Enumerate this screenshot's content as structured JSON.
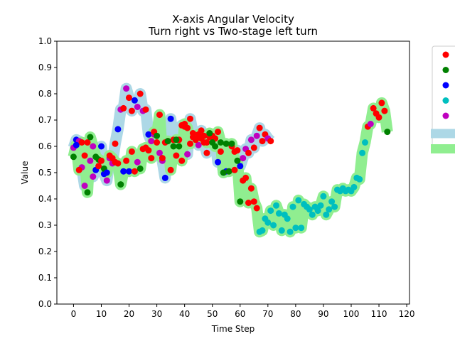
{
  "chart_data": {
    "type": "scatter",
    "title": "X-axis Angular Velocity",
    "subtitle": "Turn right vs Two-stage left turn",
    "xlabel": "Time Step",
    "ylabel": "Value",
    "xlim": [
      -6,
      121
    ],
    "ylim": [
      0.0,
      1.0
    ],
    "x_ticks": [
      0,
      10,
      20,
      30,
      40,
      50,
      60,
      70,
      80,
      90,
      100,
      110,
      120
    ],
    "y_ticks": [
      0.0,
      0.1,
      0.2,
      0.3,
      0.4,
      0.5,
      0.6,
      0.7,
      0.8,
      0.9,
      1.0
    ],
    "x_tick_labels": [
      "0",
      "10",
      "20",
      "30",
      "40",
      "50",
      "60",
      "70",
      "80",
      "90",
      "100",
      "110",
      "120"
    ],
    "y_tick_labels": [
      "0.0",
      "0.1",
      "0.2",
      "0.3",
      "0.4",
      "0.5",
      "0.6",
      "0.7",
      "0.8",
      "0.9",
      "1.0"
    ],
    "grid": false,
    "legend_position": "top-right (clipped at the right edge)",
    "point_colors": {
      "red": "#ff0000",
      "green": "#008000",
      "blue": "#0000ff",
      "cyan": "#00bfbf",
      "magenta": "#bf00bf"
    },
    "band_colors": {
      "turn_right": "#add8e6",
      "two_stage_left": "#90ee90"
    },
    "legend_entries": [
      {
        "kind": "point",
        "color": "#ff0000"
      },
      {
        "kind": "point",
        "color": "#008000"
      },
      {
        "kind": "point",
        "color": "#0000ff"
      },
      {
        "kind": "point",
        "color": "#00bfbf"
      },
      {
        "kind": "point",
        "color": "#bf00bf"
      },
      {
        "kind": "band",
        "color": "#add8e6"
      },
      {
        "kind": "band",
        "color": "#90ee90"
      }
    ],
    "series": [
      {
        "band_color": "#add8e6",
        "points": [
          {
            "x": 0,
            "y": 0.595,
            "c": "magenta"
          },
          {
            "x": 1,
            "y": 0.625,
            "c": "blue"
          },
          {
            "x": 2,
            "y": 0.62,
            "c": "magenta"
          },
          {
            "x": 3,
            "y": 0.52,
            "c": "magenta"
          },
          {
            "x": 4,
            "y": 0.45,
            "c": "magenta"
          },
          {
            "x": 5,
            "y": 0.615,
            "c": "red"
          },
          {
            "x": 6,
            "y": 0.545,
            "c": "magenta"
          },
          {
            "x": 7,
            "y": 0.485,
            "c": "magenta"
          },
          {
            "x": 8,
            "y": 0.51,
            "c": "blue"
          },
          {
            "x": 9,
            "y": 0.525,
            "c": "red"
          },
          {
            "x": 10,
            "y": 0.6,
            "c": "blue"
          },
          {
            "x": 11,
            "y": 0.495,
            "c": "blue"
          },
          {
            "x": 12,
            "y": 0.47,
            "c": "magenta"
          },
          {
            "x": 13,
            "y": 0.555,
            "c": "magenta"
          },
          {
            "x": 14,
            "y": 0.535,
            "c": "magenta"
          },
          {
            "x": 15,
            "y": 0.61,
            "c": "red"
          },
          {
            "x": 16,
            "y": 0.665,
            "c": "blue"
          },
          {
            "x": 17,
            "y": 0.74,
            "c": "magenta"
          },
          {
            "x": 18,
            "y": 0.745,
            "c": "red"
          },
          {
            "x": 19,
            "y": 0.82,
            "c": "magenta"
          },
          {
            "x": 20,
            "y": 0.785,
            "c": "red"
          },
          {
            "x": 21,
            "y": 0.735,
            "c": "red"
          },
          {
            "x": 22,
            "y": 0.775,
            "c": "blue"
          },
          {
            "x": 23,
            "y": 0.75,
            "c": "magenta"
          },
          {
            "x": 24,
            "y": 0.8,
            "c": "red"
          },
          {
            "x": 25,
            "y": 0.735,
            "c": "magenta"
          },
          {
            "x": 26,
            "y": 0.74,
            "c": "red"
          },
          {
            "x": 27,
            "y": 0.645,
            "c": "blue"
          },
          {
            "x": 28,
            "y": 0.62,
            "c": "magenta"
          },
          {
            "x": 29,
            "y": 0.645,
            "c": "magenta"
          },
          {
            "x": 30,
            "y": 0.615,
            "c": "red"
          },
          {
            "x": 31,
            "y": 0.575,
            "c": "magenta"
          },
          {
            "x": 32,
            "y": 0.545,
            "c": "magenta"
          },
          {
            "x": 33,
            "y": 0.48,
            "c": "blue"
          },
          {
            "x": 34,
            "y": 0.62,
            "c": "red"
          },
          {
            "x": 35,
            "y": 0.705,
            "c": "blue"
          },
          {
            "x": 36,
            "y": 0.625,
            "c": "red"
          },
          {
            "x": 37,
            "y": 0.565,
            "c": "red"
          },
          {
            "x": 38,
            "y": 0.625,
            "c": "red"
          },
          {
            "x": 39,
            "y": 0.68,
            "c": "red"
          },
          {
            "x": 40,
            "y": 0.675,
            "c": "red"
          },
          {
            "x": 41,
            "y": 0.57,
            "c": "magenta"
          },
          {
            "x": 42,
            "y": 0.705,
            "c": "red"
          },
          {
            "x": 43,
            "y": 0.65,
            "c": "red"
          },
          {
            "x": 44,
            "y": 0.63,
            "c": "red"
          },
          {
            "x": 45,
            "y": 0.605,
            "c": "magenta"
          },
          {
            "x": 46,
            "y": 0.66,
            "c": "red"
          },
          {
            "x": 47,
            "y": 0.615,
            "c": "red"
          },
          {
            "x": 48,
            "y": 0.575,
            "c": "red"
          },
          {
            "x": 49,
            "y": 0.635,
            "c": "red"
          },
          {
            "x": 50,
            "y": 0.64,
            "c": "red"
          },
          {
            "x": 51,
            "y": 0.63,
            "c": "red"
          },
          {
            "x": 52,
            "y": 0.54,
            "c": "blue"
          },
          {
            "x": 53,
            "y": 0.58,
            "c": "red"
          },
          {
            "x": 54,
            "y": 0.5,
            "c": "blue"
          },
          {
            "x": 55,
            "y": 0.505,
            "c": "blue"
          },
          {
            "x": 56,
            "y": 0.505,
            "c": "red"
          },
          {
            "x": 57,
            "y": 0.6,
            "c": "red"
          },
          {
            "x": 58,
            "y": 0.58,
            "c": "red"
          },
          {
            "x": 59,
            "y": 0.585,
            "c": "red"
          },
          {
            "x": 60,
            "y": 0.525,
            "c": "blue"
          },
          {
            "x": 61,
            "y": 0.555,
            "c": "magenta"
          },
          {
            "x": 62,
            "y": 0.59,
            "c": "magenta"
          },
          {
            "x": 63,
            "y": 0.575,
            "c": "red"
          },
          {
            "x": 64,
            "y": 0.625,
            "c": "magenta"
          },
          {
            "x": 65,
            "y": 0.595,
            "c": "red"
          },
          {
            "x": 66,
            "y": 0.64,
            "c": "magenta"
          },
          {
            "x": 67,
            "y": 0.67,
            "c": "red"
          },
          {
            "x": 68,
            "y": 0.62,
            "c": "red"
          },
          {
            "x": 69,
            "y": 0.645,
            "c": "red"
          },
          {
            "x": 70,
            "y": 0.63,
            "c": "magenta"
          },
          {
            "x": 71,
            "y": 0.62,
            "c": "red"
          }
        ]
      },
      {
        "band_color": "#90ee90",
        "points": [
          {
            "x": 0,
            "y": 0.56,
            "c": "green"
          },
          {
            "x": 1,
            "y": 0.605,
            "c": "blue"
          },
          {
            "x": 2,
            "y": 0.51,
            "c": "red"
          },
          {
            "x": 3,
            "y": 0.615,
            "c": "red"
          },
          {
            "x": 4,
            "y": 0.565,
            "c": "red"
          },
          {
            "x": 5,
            "y": 0.425,
            "c": "green"
          },
          {
            "x": 6,
            "y": 0.635,
            "c": "green"
          },
          {
            "x": 7,
            "y": 0.6,
            "c": "magenta"
          },
          {
            "x": 8,
            "y": 0.56,
            "c": "green"
          },
          {
            "x": 9,
            "y": 0.55,
            "c": "green"
          },
          {
            "x": 10,
            "y": 0.545,
            "c": "red"
          },
          {
            "x": 11,
            "y": 0.515,
            "c": "green"
          },
          {
            "x": 12,
            "y": 0.5,
            "c": "blue"
          },
          {
            "x": 13,
            "y": 0.565,
            "c": "red"
          },
          {
            "x": 14,
            "y": 0.555,
            "c": "red"
          },
          {
            "x": 15,
            "y": 0.54,
            "c": "red"
          },
          {
            "x": 16,
            "y": 0.535,
            "c": "red"
          },
          {
            "x": 17,
            "y": 0.455,
            "c": "green"
          },
          {
            "x": 18,
            "y": 0.505,
            "c": "blue"
          },
          {
            "x": 19,
            "y": 0.545,
            "c": "red"
          },
          {
            "x": 20,
            "y": 0.505,
            "c": "blue"
          },
          {
            "x": 21,
            "y": 0.58,
            "c": "red"
          },
          {
            "x": 22,
            "y": 0.505,
            "c": "red"
          },
          {
            "x": 23,
            "y": 0.54,
            "c": "magenta"
          },
          {
            "x": 24,
            "y": 0.515,
            "c": "green"
          },
          {
            "x": 25,
            "y": 0.59,
            "c": "red"
          },
          {
            "x": 26,
            "y": 0.595,
            "c": "red"
          },
          {
            "x": 27,
            "y": 0.585,
            "c": "red"
          },
          {
            "x": 28,
            "y": 0.555,
            "c": "red"
          },
          {
            "x": 29,
            "y": 0.655,
            "c": "red"
          },
          {
            "x": 30,
            "y": 0.64,
            "c": "green"
          },
          {
            "x": 31,
            "y": 0.72,
            "c": "red"
          },
          {
            "x": 32,
            "y": 0.555,
            "c": "red"
          },
          {
            "x": 33,
            "y": 0.615,
            "c": "red"
          },
          {
            "x": 34,
            "y": 0.62,
            "c": "green"
          },
          {
            "x": 35,
            "y": 0.51,
            "c": "red"
          },
          {
            "x": 36,
            "y": 0.6,
            "c": "green"
          },
          {
            "x": 37,
            "y": 0.625,
            "c": "green"
          },
          {
            "x": 38,
            "y": 0.6,
            "c": "green"
          },
          {
            "x": 39,
            "y": 0.545,
            "c": "red"
          },
          {
            "x": 40,
            "y": 0.685,
            "c": "red"
          },
          {
            "x": 41,
            "y": 0.67,
            "c": "red"
          },
          {
            "x": 42,
            "y": 0.61,
            "c": "red"
          },
          {
            "x": 43,
            "y": 0.635,
            "c": "red"
          },
          {
            "x": 44,
            "y": 0.625,
            "c": "red"
          },
          {
            "x": 45,
            "y": 0.645,
            "c": "red"
          },
          {
            "x": 46,
            "y": 0.63,
            "c": "red"
          },
          {
            "x": 47,
            "y": 0.64,
            "c": "red"
          },
          {
            "x": 48,
            "y": 0.615,
            "c": "red"
          },
          {
            "x": 49,
            "y": 0.65,
            "c": "green"
          },
          {
            "x": 50,
            "y": 0.615,
            "c": "green"
          },
          {
            "x": 51,
            "y": 0.6,
            "c": "green"
          },
          {
            "x": 52,
            "y": 0.655,
            "c": "red"
          },
          {
            "x": 53,
            "y": 0.615,
            "c": "green"
          },
          {
            "x": 54,
            "y": 0.5,
            "c": "green"
          },
          {
            "x": 55,
            "y": 0.61,
            "c": "green"
          },
          {
            "x": 56,
            "y": 0.505,
            "c": "green"
          },
          {
            "x": 57,
            "y": 0.61,
            "c": "green"
          },
          {
            "x": 58,
            "y": 0.51,
            "c": "red"
          },
          {
            "x": 59,
            "y": 0.545,
            "c": "green"
          },
          {
            "x": 60,
            "y": 0.39,
            "c": "green"
          },
          {
            "x": 61,
            "y": 0.47,
            "c": "red"
          },
          {
            "x": 62,
            "y": 0.48,
            "c": "red"
          },
          {
            "x": 63,
            "y": 0.385,
            "c": "red"
          },
          {
            "x": 64,
            "y": 0.44,
            "c": "red"
          },
          {
            "x": 65,
            "y": 0.39,
            "c": "red"
          },
          {
            "x": 66,
            "y": 0.365,
            "c": "red"
          },
          {
            "x": 67,
            "y": 0.275,
            "c": "cyan"
          },
          {
            "x": 68,
            "y": 0.28,
            "c": "cyan"
          },
          {
            "x": 69,
            "y": 0.325,
            "c": "cyan"
          },
          {
            "x": 70,
            "y": 0.31,
            "c": "cyan"
          },
          {
            "x": 71,
            "y": 0.355,
            "c": "cyan"
          },
          {
            "x": 72,
            "y": 0.3,
            "c": "cyan"
          },
          {
            "x": 73,
            "y": 0.375,
            "c": "cyan"
          },
          {
            "x": 74,
            "y": 0.345,
            "c": "cyan"
          },
          {
            "x": 75,
            "y": 0.28,
            "c": "cyan"
          },
          {
            "x": 76,
            "y": 0.34,
            "c": "cyan"
          },
          {
            "x": 77,
            "y": 0.325,
            "c": "cyan"
          },
          {
            "x": 78,
            "y": 0.275,
            "c": "cyan"
          },
          {
            "x": 79,
            "y": 0.37,
            "c": "cyan"
          },
          {
            "x": 80,
            "y": 0.29,
            "c": "cyan"
          },
          {
            "x": 81,
            "y": 0.395,
            "c": "cyan"
          },
          {
            "x": 82,
            "y": 0.29,
            "c": "cyan"
          },
          {
            "x": 83,
            "y": 0.38,
            "c": "cyan"
          },
          {
            "x": 84,
            "y": 0.37,
            "c": "cyan"
          },
          {
            "x": 85,
            "y": 0.36,
            "c": "cyan"
          },
          {
            "x": 86,
            "y": 0.34,
            "c": "cyan"
          },
          {
            "x": 87,
            "y": 0.37,
            "c": "cyan"
          },
          {
            "x": 88,
            "y": 0.355,
            "c": "cyan"
          },
          {
            "x": 89,
            "y": 0.375,
            "c": "cyan"
          },
          {
            "x": 90,
            "y": 0.41,
            "c": "cyan"
          },
          {
            "x": 91,
            "y": 0.34,
            "c": "cyan"
          },
          {
            "x": 92,
            "y": 0.36,
            "c": "cyan"
          },
          {
            "x": 93,
            "y": 0.39,
            "c": "cyan"
          },
          {
            "x": 94,
            "y": 0.37,
            "c": "cyan"
          },
          {
            "x": 95,
            "y": 0.435,
            "c": "cyan"
          },
          {
            "x": 96,
            "y": 0.43,
            "c": "cyan"
          },
          {
            "x": 97,
            "y": 0.44,
            "c": "cyan"
          },
          {
            "x": 98,
            "y": 0.43,
            "c": "cyan"
          },
          {
            "x": 99,
            "y": 0.435,
            "c": "cyan"
          },
          {
            "x": 100,
            "y": 0.43,
            "c": "cyan"
          },
          {
            "x": 101,
            "y": 0.445,
            "c": "cyan"
          },
          {
            "x": 102,
            "y": 0.48,
            "c": "cyan"
          },
          {
            "x": 103,
            "y": 0.475,
            "c": "cyan"
          },
          {
            "x": 104,
            "y": 0.575,
            "c": "cyan"
          },
          {
            "x": 105,
            "y": 0.615,
            "c": "cyan"
          },
          {
            "x": 106,
            "y": 0.675,
            "c": "red"
          },
          {
            "x": 107,
            "y": 0.685,
            "c": "magenta"
          },
          {
            "x": 108,
            "y": 0.745,
            "c": "red"
          },
          {
            "x": 109,
            "y": 0.725,
            "c": "red"
          },
          {
            "x": 110,
            "y": 0.71,
            "c": "red"
          },
          {
            "x": 111,
            "y": 0.765,
            "c": "red"
          },
          {
            "x": 112,
            "y": 0.735,
            "c": "red"
          },
          {
            "x": 113,
            "y": 0.655,
            "c": "green"
          }
        ]
      }
    ]
  }
}
